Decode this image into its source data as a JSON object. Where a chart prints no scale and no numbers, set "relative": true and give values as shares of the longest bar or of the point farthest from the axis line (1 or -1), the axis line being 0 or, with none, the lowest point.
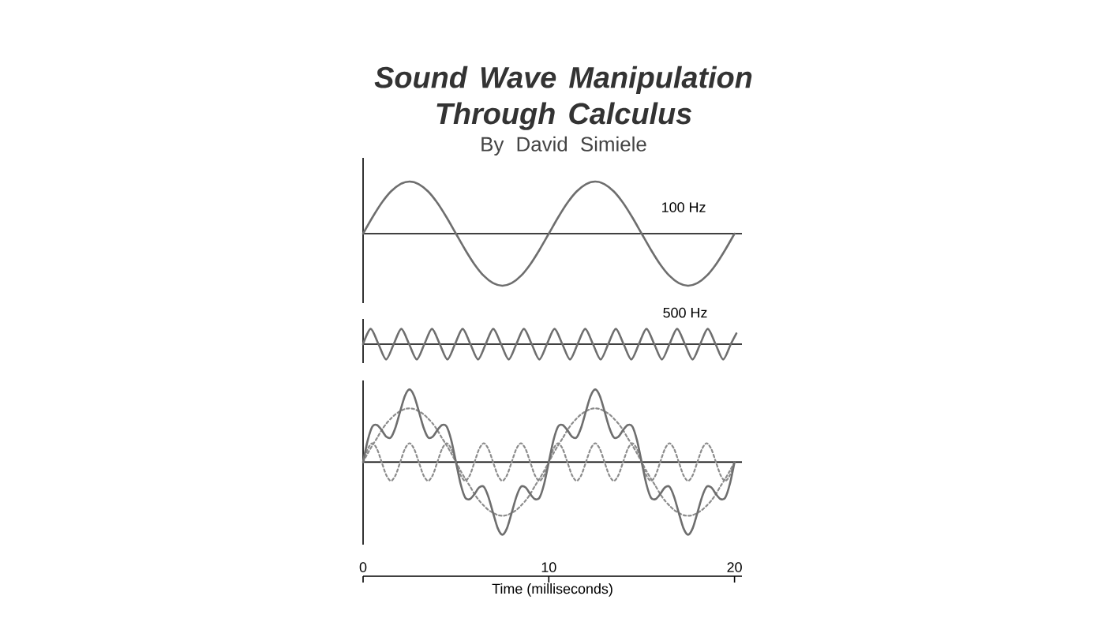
{
  "chart_data": [
    {
      "type": "line",
      "title": "Sound Wave Manipulation Through Calculus",
      "subtitle": "By David Simiele",
      "relative": true,
      "tick_labels": false,
      "xlim": [
        0,
        20.4
      ],
      "marker": "none",
      "line_style": "solid",
      "x": [
        0,
        0.5,
        1,
        1.5,
        2,
        2.5,
        3,
        3.5,
        4,
        4.5,
        5,
        5.5,
        6,
        6.5,
        7,
        7.5,
        8,
        8.5,
        9,
        9.5,
        10,
        10.5,
        11,
        11.5,
        12,
        12.5,
        13,
        13.5,
        14,
        14.5,
        15,
        15.5,
        16,
        16.5,
        17,
        17.5,
        18,
        18.5,
        19,
        19.5,
        20
      ],
      "series": [
        {
          "name": "100 Hz",
          "color": "#6e6e6e",
          "values": [
            0,
            0.31,
            0.59,
            0.81,
            0.95,
            1,
            0.95,
            0.81,
            0.59,
            0.31,
            0,
            -0.31,
            -0.59,
            -0.81,
            -0.95,
            -1,
            -0.95,
            -0.81,
            -0.59,
            -0.31,
            0,
            0.31,
            0.59,
            0.81,
            0.95,
            1,
            0.95,
            0.81,
            0.59,
            0.31,
            0,
            -0.31,
            -0.59,
            -0.81,
            -0.95,
            -1,
            -0.95,
            -0.81,
            -0.59,
            -0.31,
            0
          ]
        }
      ]
    },
    {
      "type": "line",
      "relative": true,
      "tick_labels": false,
      "xlim": [
        0,
        20.4
      ],
      "marker": "none",
      "line_style": "solid",
      "series": [
        {
          "name": "500 Hz",
          "color": "#6e6e6e",
          "x": [
            0,
            0.41,
            0.83,
            1.24,
            1.65,
            2.06,
            2.48,
            2.89,
            3.3,
            3.71,
            4.13,
            4.54,
            4.95,
            5.36,
            5.78,
            6.19,
            6.6,
            7.01,
            7.43,
            7.84,
            8.25,
            8.66,
            9.08,
            9.49,
            9.9,
            10.31,
            10.73,
            11.14,
            11.55,
            11.96,
            12.38,
            12.79,
            13.2,
            13.61,
            14.03,
            14.44,
            14.85,
            15.26,
            15.68,
            16.09,
            16.5,
            16.91,
            17.33,
            17.74,
            18.15,
            18.56,
            18.98,
            19.39,
            19.8,
            20.1
          ],
          "values": [
            0,
            1,
            0,
            -1,
            0,
            1,
            0,
            -1,
            0,
            1,
            0,
            -1,
            0,
            1,
            0,
            -1,
            0,
            1,
            0,
            -1,
            0,
            1,
            0,
            -1,
            0,
            1,
            0,
            -1,
            0,
            1,
            0,
            -1,
            0,
            1,
            0,
            -1,
            0,
            1,
            0,
            -1,
            0,
            1,
            0,
            -1,
            0,
            1,
            0,
            -1,
            0,
            0.7
          ]
        }
      ]
    },
    {
      "type": "line",
      "relative": true,
      "tick_labels": "x",
      "xlim": [
        0,
        20.4
      ],
      "xticks": [
        0,
        10,
        20
      ],
      "xlabel": "Time (milliseconds)",
      "marker": "none",
      "line_style": "solid",
      "x": [
        0,
        0.25,
        0.5,
        0.75,
        1,
        1.25,
        1.5,
        1.75,
        2,
        2.25,
        2.5,
        2.75,
        3,
        3.25,
        3.5,
        3.75,
        4,
        4.25,
        4.5,
        4.75,
        5,
        5.25,
        5.5,
        5.75,
        6,
        6.25,
        6.5,
        6.75,
        7,
        7.25,
        7.5,
        7.75,
        8,
        8.25,
        8.5,
        8.75,
        9,
        9.25,
        9.5,
        9.75,
        10,
        10.25,
        10.5,
        10.75,
        11,
        11.25,
        11.5,
        11.75,
        12,
        12.25,
        12.5,
        12.75,
        13,
        13.25,
        13.5,
        13.75,
        14,
        14.25,
        14.5,
        14.75,
        15,
        15.25,
        15.5,
        15.75,
        16,
        16.25,
        16.5,
        16.75,
        17,
        17.25,
        17.5,
        17.75,
        18,
        18.25,
        18.5,
        18.75,
        19,
        19.25,
        19.5,
        19.75,
        20
      ],
      "series": [
        {
          "color": "#8c8c8c",
          "line_style": "dotted",
          "values": [
            0,
            0.12,
            0.23,
            0.33,
            0.44,
            0.53,
            0.6,
            0.66,
            0.7,
            0.73,
            0.74,
            0.73,
            0.7,
            0.66,
            0.6,
            0.53,
            0.44,
            0.33,
            0.23,
            0.12,
            0,
            -0.12,
            -0.23,
            -0.33,
            -0.44,
            -0.53,
            -0.6,
            -0.66,
            -0.7,
            -0.73,
            -0.74,
            -0.73,
            -0.7,
            -0.66,
            -0.6,
            -0.53,
            -0.44,
            -0.33,
            -0.23,
            -0.12,
            0,
            0.12,
            0.23,
            0.33,
            0.44,
            0.53,
            0.6,
            0.66,
            0.7,
            0.73,
            0.74,
            0.73,
            0.7,
            0.66,
            0.6,
            0.53,
            0.44,
            0.33,
            0.23,
            0.12,
            0,
            -0.12,
            -0.23,
            -0.33,
            -0.44,
            -0.53,
            -0.6,
            -0.66,
            -0.7,
            -0.73,
            -0.74,
            -0.73,
            -0.7,
            -0.66,
            -0.6,
            -0.53,
            -0.44,
            -0.33,
            -0.23,
            -0.12,
            0
          ]
        },
        {
          "color": "#8c8c8c",
          "line_style": "dotted",
          "values": [
            0,
            0.18,
            0.26,
            0.18,
            0,
            -0.18,
            -0.26,
            -0.18,
            0,
            0.18,
            0.26,
            0.18,
            0,
            -0.18,
            -0.26,
            -0.18,
            0,
            0.18,
            0.26,
            0.18,
            0,
            -0.18,
            -0.26,
            -0.18,
            0,
            0.18,
            0.26,
            0.18,
            0,
            -0.18,
            -0.26,
            -0.18,
            0,
            0.18,
            0.26,
            0.18,
            0,
            -0.18,
            -0.26,
            -0.18,
            0,
            0.18,
            0.26,
            0.18,
            0,
            -0.18,
            -0.26,
            -0.18,
            0,
            0.18,
            0.26,
            0.18,
            0,
            -0.18,
            -0.26,
            -0.18,
            0,
            0.18,
            0.26,
            0.18,
            0,
            -0.18,
            -0.26,
            -0.18,
            0,
            0.18,
            0.26,
            0.18,
            0,
            -0.18,
            -0.26,
            -0.18,
            0,
            0.18,
            0.26,
            0.18,
            0,
            -0.18,
            -0.26,
            -0.18,
            0
          ]
        },
        {
          "color": "#6e6e6e",
          "line_style": "solid",
          "values": [
            0,
            0.3,
            0.49,
            0.51,
            0.44,
            0.35,
            0.34,
            0.48,
            0.7,
            0.91,
            1,
            0.91,
            0.7,
            0.48,
            0.34,
            0.35,
            0.44,
            0.51,
            0.49,
            0.3,
            0,
            -0.3,
            -0.49,
            -0.51,
            -0.44,
            -0.35,
            -0.34,
            -0.48,
            -0.7,
            -0.91,
            -1,
            -0.91,
            -0.7,
            -0.48,
            -0.34,
            -0.35,
            -0.44,
            -0.51,
            -0.49,
            -0.3,
            0,
            0.3,
            0.49,
            0.51,
            0.44,
            0.35,
            0.34,
            0.48,
            0.7,
            0.91,
            1,
            0.91,
            0.7,
            0.48,
            0.34,
            0.35,
            0.44,
            0.51,
            0.49,
            0.3,
            0,
            -0.3,
            -0.49,
            -0.51,
            -0.44,
            -0.35,
            -0.34,
            -0.48,
            -0.7,
            -0.91,
            -1,
            -0.91,
            -0.7,
            -0.48,
            -0.34,
            -0.35,
            -0.44,
            -0.51,
            -0.49,
            -0.3,
            0
          ]
        }
      ]
    }
  ]
}
